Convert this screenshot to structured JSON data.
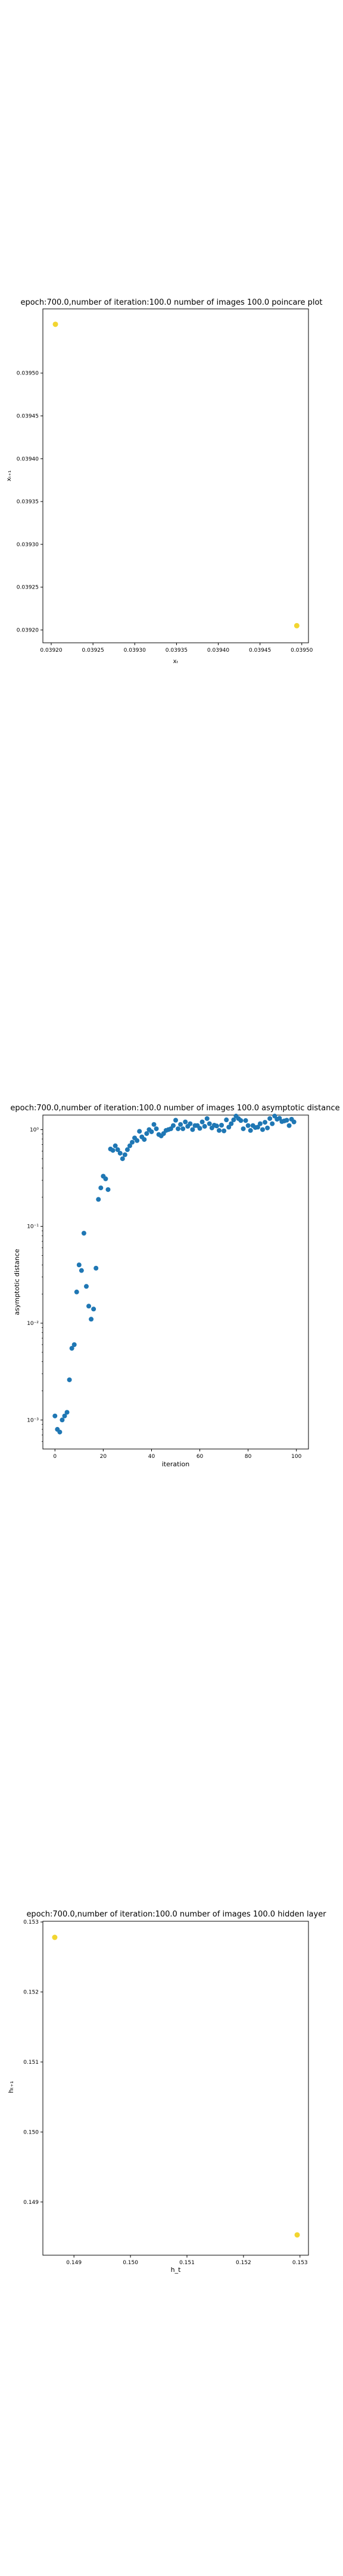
{
  "chart_data": [
    {
      "type": "scatter",
      "title": "epoch:700.0,number of iteration:100.0 number of images 100.0 poincare plot",
      "xlabel": "xₜ",
      "ylabel": "xₜ₊₁",
      "xlim": [
        0.03919,
        0.039508
      ],
      "ylim": [
        0.039185,
        0.039575
      ],
      "xticks": [
        0.0392,
        0.03925,
        0.0393,
        0.03935,
        0.0394,
        0.03945,
        0.0395
      ],
      "xtick_labels": [
        "0.03920",
        "0.03925",
        "0.03930",
        "0.03935",
        "0.03940",
        "0.03945",
        "0.03950"
      ],
      "yticks": [
        0.0392,
        0.03925,
        0.0393,
        0.03935,
        0.0394,
        0.03945,
        0.0395
      ],
      "ytick_labels": [
        "0.03920",
        "0.03925",
        "0.03930",
        "0.03935",
        "0.03940",
        "0.03945",
        "0.03950"
      ],
      "grid": false,
      "points": [
        {
          "x": 0.039205,
          "y": 0.039557
        },
        {
          "x": 0.039494,
          "y": 0.039205
        }
      ],
      "color": "#f2d530"
    },
    {
      "type": "scatter",
      "title": "epoch:700.0,number of iteration:100.0  number of images 100.0 asymptotic distance",
      "xlabel": "iteration",
      "ylabel": "asymptotic distance",
      "xlim": [
        -5,
        105
      ],
      "ylog": true,
      "ylim_exp": [
        -3.3,
        0.15
      ],
      "xticks": [
        0,
        20,
        40,
        60,
        80,
        100
      ],
      "xtick_labels": [
        "0",
        "20",
        "40",
        "60",
        "80",
        "100"
      ],
      "yticks_exp": [
        -3,
        -2,
        -1,
        0
      ],
      "ytick_labels": [
        "10⁻³",
        "10⁻²",
        "10⁻¹",
        "10⁰"
      ],
      "grid": false,
      "color": "#1f77b4",
      "x": [
        0,
        1,
        2,
        3,
        4,
        5,
        6,
        7,
        8,
        9,
        10,
        11,
        12,
        13,
        14,
        15,
        16,
        17,
        18,
        19,
        20,
        21,
        22,
        23,
        24,
        25,
        26,
        27,
        28,
        29,
        30,
        31,
        32,
        33,
        34,
        35,
        36,
        37,
        38,
        39,
        40,
        41,
        42,
        43,
        44,
        45,
        46,
        47,
        48,
        49,
        50,
        51,
        52,
        53,
        54,
        55,
        56,
        57,
        58,
        59,
        60,
        61,
        62,
        63,
        64,
        65,
        66,
        67,
        68,
        69,
        70,
        71,
        72,
        73,
        74,
        75,
        76,
        77,
        78,
        79,
        80,
        81,
        82,
        83,
        84,
        85,
        86,
        87,
        88,
        89,
        90,
        91,
        92,
        93,
        94,
        95,
        96,
        97,
        98,
        99
      ],
      "y": [
        0.0011,
        0.0008,
        0.00075,
        0.001,
        0.0011,
        0.0012,
        0.0026,
        0.0055,
        0.006,
        0.021,
        0.04,
        0.035,
        0.085,
        0.024,
        0.015,
        0.011,
        0.014,
        0.037,
        0.19,
        0.25,
        0.33,
        0.31,
        0.24,
        0.63,
        0.61,
        0.68,
        0.62,
        0.57,
        0.5,
        0.55,
        0.62,
        0.68,
        0.74,
        0.82,
        0.77,
        0.96,
        0.84,
        0.79,
        0.91,
        1.0,
        0.95,
        1.13,
        1.02,
        0.89,
        0.86,
        0.91,
        0.98,
        1.0,
        1.02,
        1.1,
        1.25,
        1.02,
        1.13,
        1.02,
        1.2,
        1.08,
        1.15,
        1.0,
        1.1,
        1.1,
        1.03,
        1.2,
        1.08,
        1.3,
        1.15,
        1.04,
        1.11,
        1.09,
        0.98,
        1.11,
        0.97,
        1.26,
        1.06,
        1.15,
        1.26,
        1.38,
        1.3,
        1.24,
        1.02,
        1.24,
        1.1,
        0.98,
        1.1,
        1.05,
        1.06,
        1.15,
        1.0,
        1.19,
        1.04,
        1.3,
        1.15,
        1.38,
        1.28,
        1.31,
        1.21,
        1.23,
        1.25,
        1.1,
        1.28,
        1.2
      ]
    },
    {
      "type": "scatter",
      "title": "epoch:700.0,number of iteration:100.0  number of images 100.0 hidden layer",
      "xlabel": "h_t",
      "ylabel": "hₜ₊₁",
      "xlim": [
        0.14845,
        0.15315
      ],
      "ylim": [
        0.14824,
        0.15301
      ],
      "xticks": [
        0.149,
        0.15,
        0.151,
        0.152,
        0.153
      ],
      "xtick_labels": [
        "0.149",
        "0.150",
        "0.151",
        "0.152",
        "0.153"
      ],
      "yticks": [
        0.149,
        0.15,
        0.151,
        0.152,
        0.153
      ],
      "ytick_labels": [
        "0.149",
        "0.150",
        "0.151",
        "0.152",
        "0.153"
      ],
      "grid": false,
      "points": [
        {
          "x": 0.14866,
          "y": 0.15278
        },
        {
          "x": 0.15295,
          "y": 0.14853
        }
      ],
      "color": "#f2d530"
    }
  ]
}
